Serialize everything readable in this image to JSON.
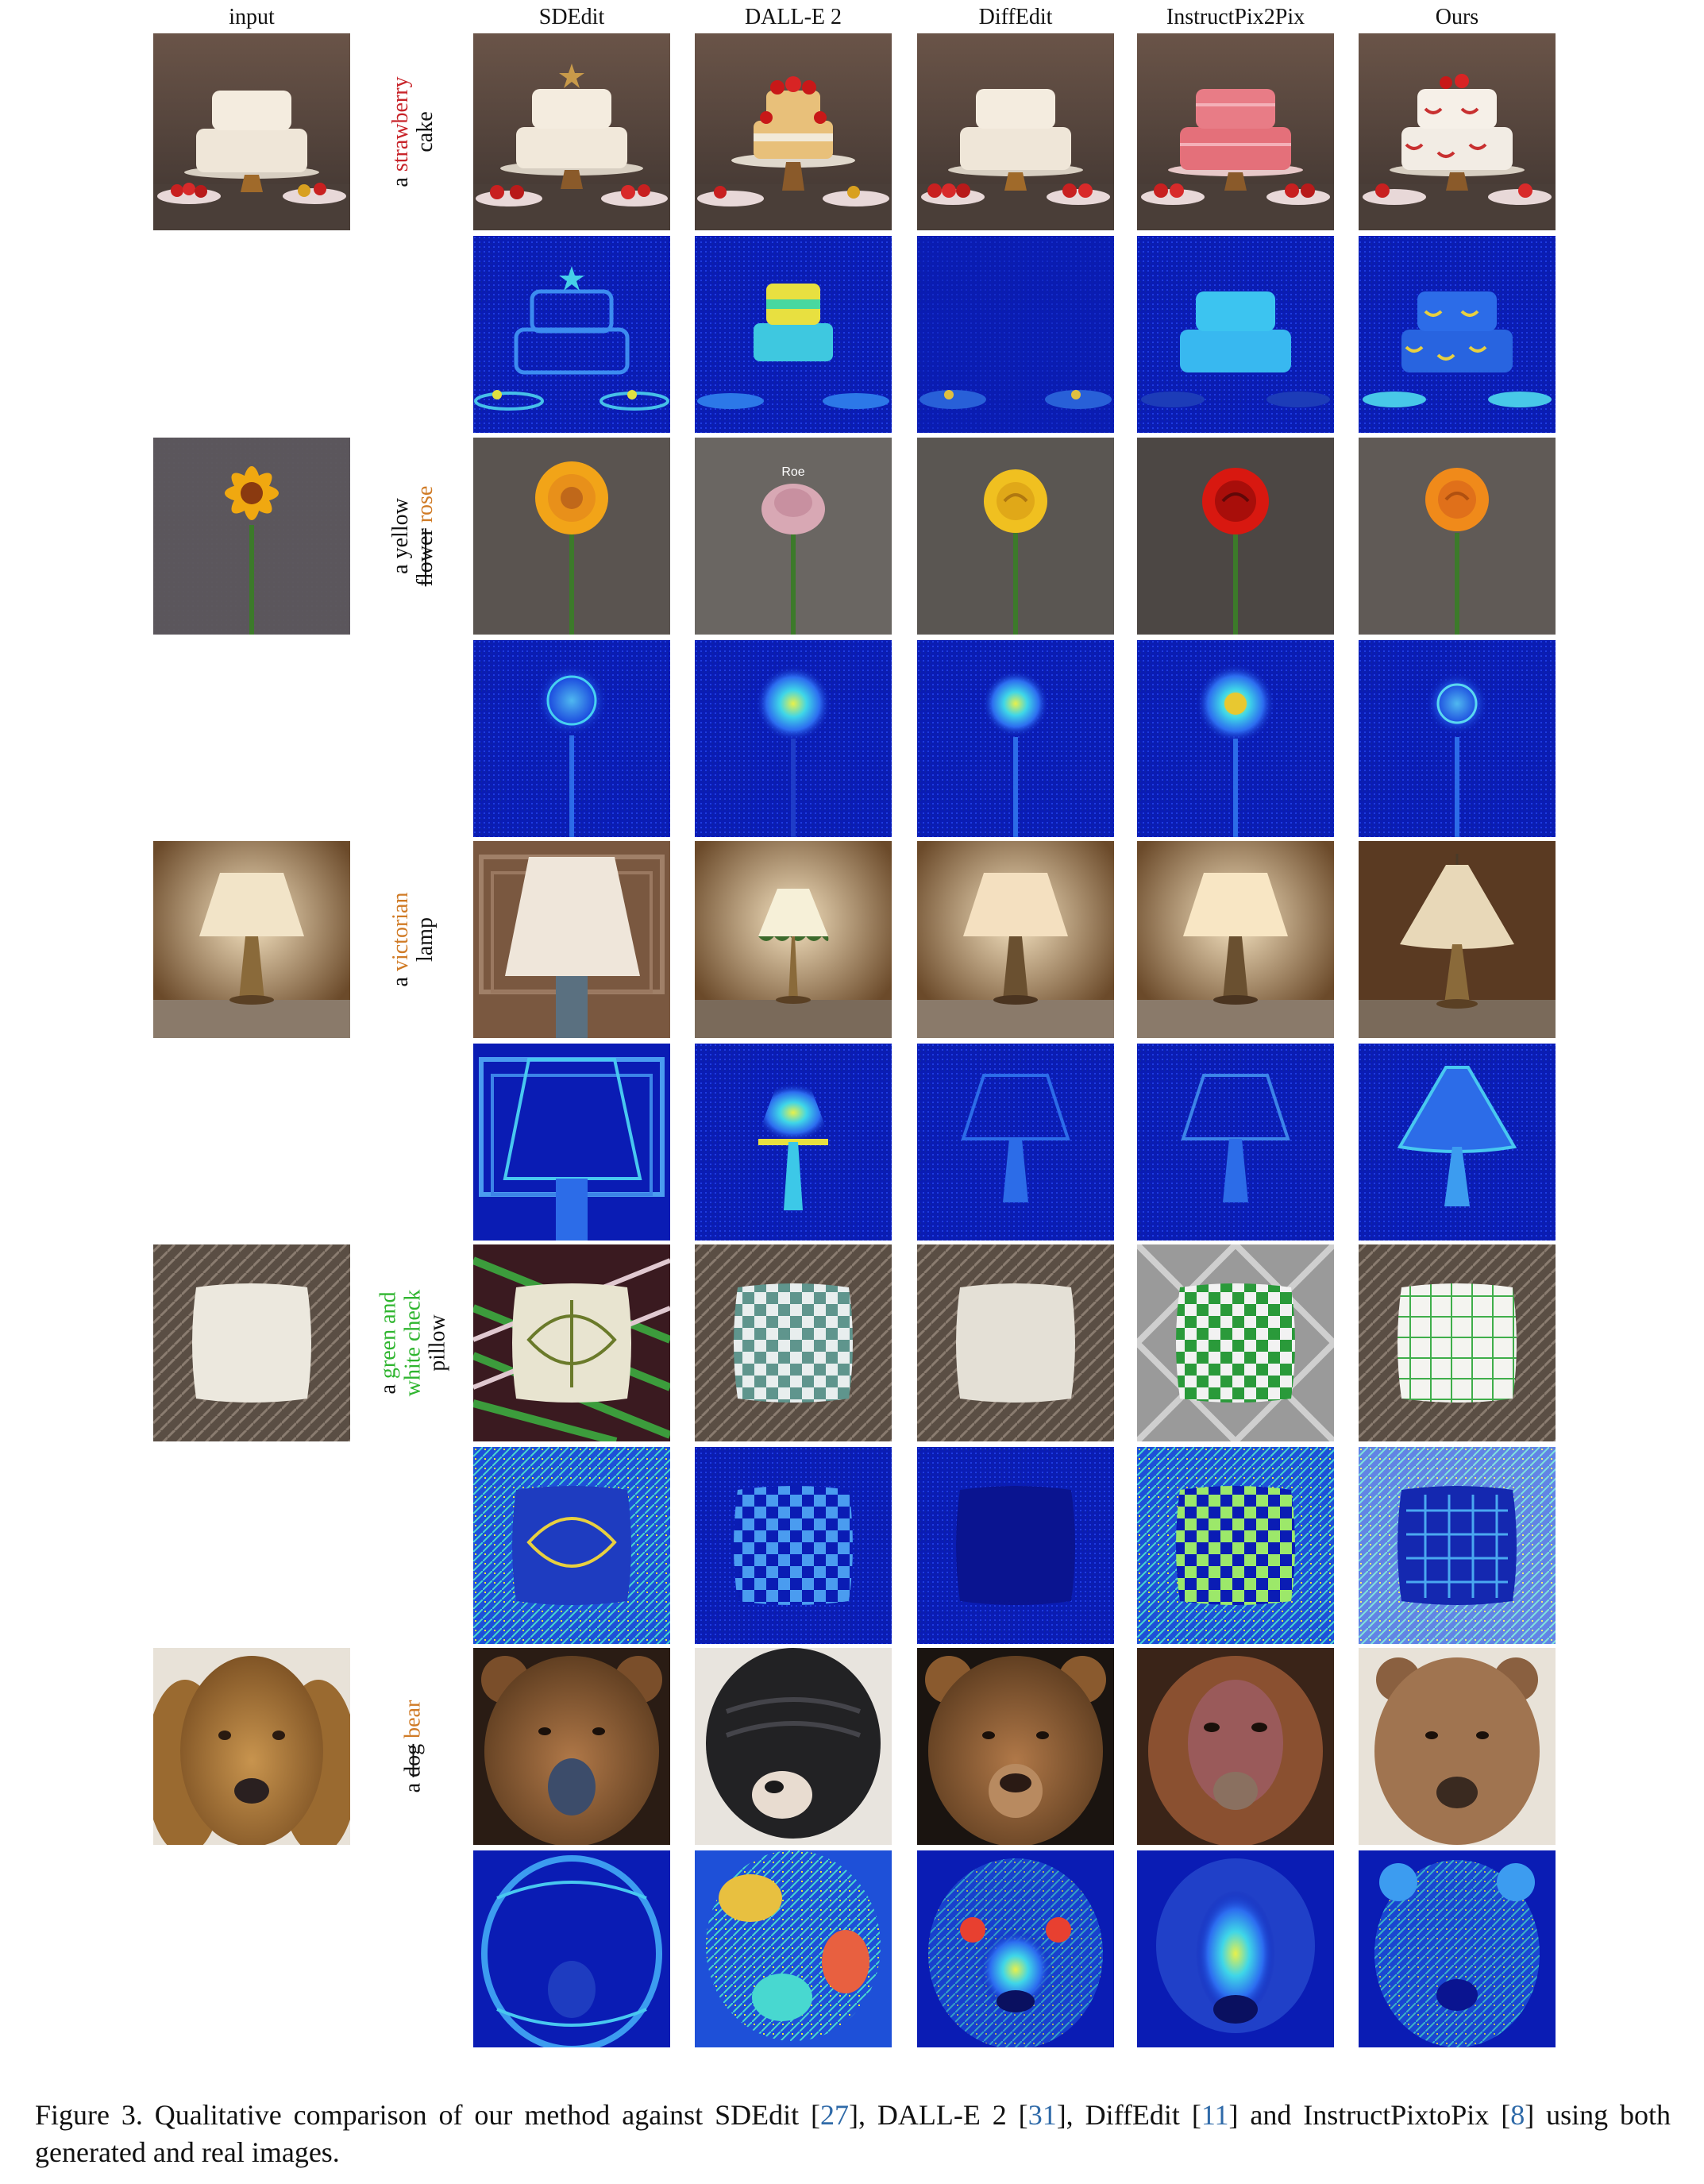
{
  "columns": [
    "input",
    "SDEdit",
    "DALL-E 2",
    "DiffEdit",
    "InstructPix2Pix",
    "Ours"
  ],
  "prompts": [
    {
      "line1_prefix": "a ",
      "line1_colored": "strawberry",
      "line1_color": "red",
      "line2": "cake"
    },
    {
      "line1": "a yellow",
      "line2_struck": "flower",
      "line2_colored": " rose",
      "line2_color": "orange"
    },
    {
      "line1_prefix": "a ",
      "line1_colored": "victorian",
      "line1_color": "orange",
      "line2": "lamp"
    },
    {
      "line1_prefix": "a ",
      "line1_colored": "green and",
      "line2_colored": "white check",
      "line2_color": "green",
      "line3": "pillow"
    },
    {
      "line1_prefix": "a ",
      "line1_struck": "dog",
      "line1_colored": " bear",
      "line1_color": "orange"
    }
  ],
  "image_labels": {
    "dalle_rose_text": "Roe"
  },
  "caption": {
    "part1": "Figure 3.  Qualitative comparison of our method against SDEdit [",
    "ref1": "27",
    "part2": "], DALL-E 2 [",
    "ref2": "31",
    "part3": "], DiffEdit [",
    "ref3": "11",
    "part4": "] and InstructPixtoPix [",
    "ref4": "8",
    "part5": "] using both generated and real images."
  },
  "colors": {
    "strawberry_red": "#c8242a",
    "victorian_orange": "#d07b26",
    "check_green": "#2fb52f",
    "citation_blue": "#2f6aa8",
    "heatmap_base": "#0a1cb4"
  }
}
